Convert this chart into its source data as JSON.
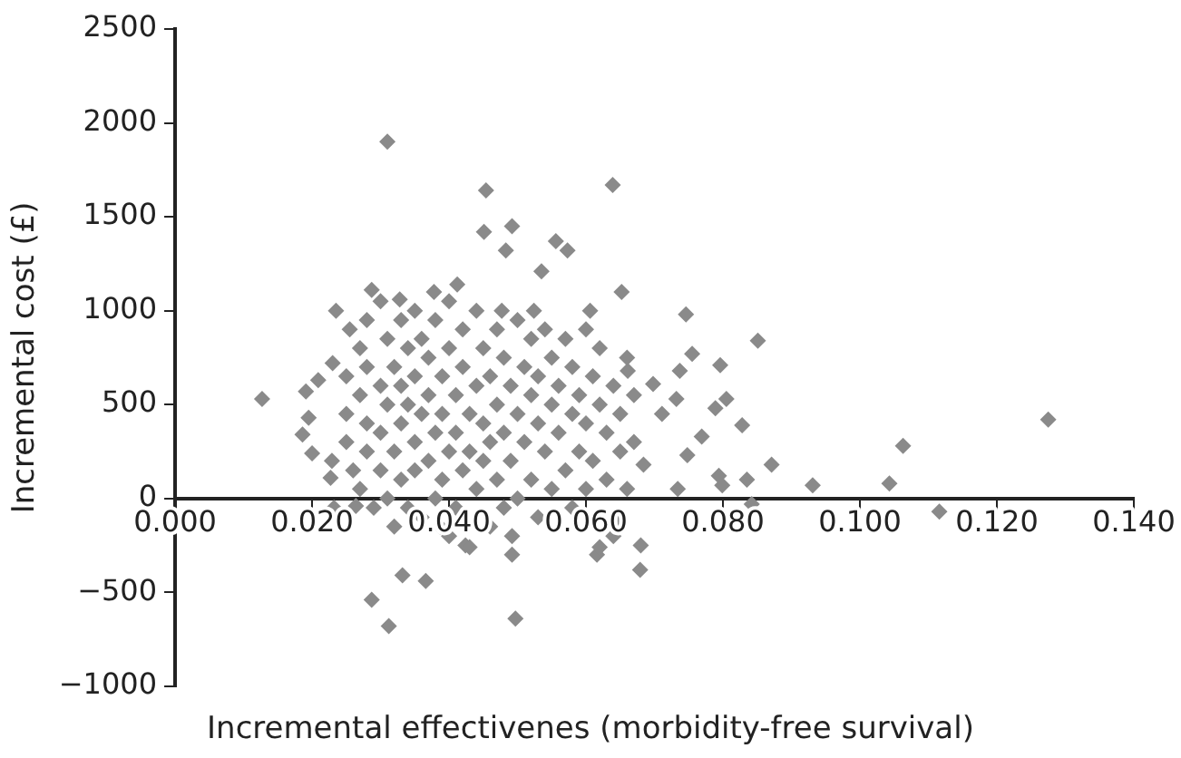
{
  "chart_data": {
    "type": "scatter",
    "xlabel": "Incremental effectivenes (morbidity-free survival)",
    "ylabel": "Incremental cost (£)",
    "xlim": [
      0,
      0.14
    ],
    "xticks": [
      {
        "value": 0,
        "label": "0.000"
      },
      {
        "value": 0.02,
        "label": "0.020"
      },
      {
        "value": 0.04,
        "label": "0.040"
      },
      {
        "value": 0.06,
        "label": "0.060"
      },
      {
        "value": 0.08,
        "label": "0.080"
      },
      {
        "value": 0.1,
        "label": "0.100"
      },
      {
        "value": 0.12,
        "label": "0.120"
      },
      {
        "value": 0.14,
        "label": "0.140"
      }
    ],
    "ylim": [
      -1000,
      2500
    ],
    "yticks": [
      {
        "value": -1000,
        "label": "−1000"
      },
      {
        "value": -500,
        "label": "−500"
      },
      0,
      500,
      1000,
      1500,
      2000,
      2500
    ],
    "grid": false,
    "legend": false,
    "marker": "diamond",
    "series": [
      {
        "color": "#8a8a8a",
        "x": [
          0.031,
          0.0454,
          0.0639,
          0.0451,
          0.0492,
          0.0483,
          0.0556,
          0.0573,
          0.0535,
          0.0652,
          0.0287,
          0.0235,
          0.0255,
          0.0127,
          0.0191,
          0.0209,
          0.023,
          0.0195,
          0.0186,
          0.02,
          0.0229,
          0.0227,
          0.0412,
          0.0328,
          0.0378,
          0.0477,
          0.0524,
          0.0606,
          0.0698,
          0.0232,
          0.0264,
          0.0332,
          0.0366,
          0.0287,
          0.0312,
          0.0497,
          0.0492,
          0.0492,
          0.0679,
          0.0647,
          0.0616,
          0.0424,
          0.0387,
          0.0746,
          0.0851,
          0.0755,
          0.0796,
          0.0737,
          0.0805,
          0.0732,
          0.0789,
          0.0828,
          0.0769,
          0.1275,
          0.1063,
          0.0871,
          0.1043,
          0.0931,
          0.0835,
          0.0794,
          0.0799,
          0.0842,
          0.1116,
          0.0748,
          0.0711,
          0.0684,
          0.0734,
          0.0661,
          0.025,
          0.025,
          0.025,
          0.026,
          0.027,
          0.027,
          0.027,
          0.028,
          0.028,
          0.028,
          0.028,
          0.029,
          0.03,
          0.03,
          0.03,
          0.03,
          0.031,
          0.031,
          0.031,
          0.032,
          0.032,
          0.032,
          0.033,
          0.033,
          0.033,
          0.033,
          0.034,
          0.034,
          0.034,
          0.035,
          0.035,
          0.035,
          0.035,
          0.036,
          0.036,
          0.036,
          0.037,
          0.037,
          0.037,
          0.038,
          0.038,
          0.038,
          0.039,
          0.039,
          0.039,
          0.04,
          0.04,
          0.04,
          0.04,
          0.041,
          0.041,
          0.041,
          0.042,
          0.042,
          0.042,
          0.043,
          0.043,
          0.043,
          0.044,
          0.044,
          0.044,
          0.045,
          0.045,
          0.045,
          0.046,
          0.046,
          0.046,
          0.047,
          0.047,
          0.047,
          0.048,
          0.048,
          0.048,
          0.049,
          0.049,
          0.05,
          0.05,
          0.05,
          0.051,
          0.051,
          0.052,
          0.052,
          0.052,
          0.053,
          0.053,
          0.053,
          0.054,
          0.054,
          0.055,
          0.055,
          0.055,
          0.056,
          0.056,
          0.057,
          0.057,
          0.058,
          0.058,
          0.058,
          0.059,
          0.059,
          0.06,
          0.06,
          0.06,
          0.061,
          0.061,
          0.062,
          0.062,
          0.062,
          0.063,
          0.063,
          0.064,
          0.064,
          0.065,
          0.065,
          0.066,
          0.066,
          0.067,
          0.067,
          0.068
        ],
        "values": [
          1900,
          1640,
          1670,
          1420,
          1450,
          1320,
          1370,
          1320,
          1210,
          1100,
          1110,
          1000,
          900,
          530,
          570,
          630,
          720,
          430,
          340,
          240,
          200,
          110,
          1140,
          1060,
          1100,
          1000,
          1000,
          1000,
          610,
          -50,
          -40,
          -410,
          -440,
          -540,
          -680,
          -640,
          -300,
          -200,
          -380,
          -120,
          -300,
          -250,
          -150,
          980,
          840,
          770,
          710,
          680,
          530,
          530,
          480,
          390,
          330,
          420,
          280,
          180,
          80,
          70,
          100,
          120,
          70,
          -30,
          -70,
          230,
          450,
          180,
          50,
          680,
          650,
          450,
          300,
          150,
          800,
          550,
          50,
          950,
          700,
          400,
          250,
          -50,
          1050,
          600,
          350,
          150,
          850,
          500,
          0,
          700,
          250,
          -150,
          950,
          600,
          400,
          100,
          800,
          500,
          -50,
          1000,
          650,
          300,
          150,
          850,
          450,
          -100,
          750,
          550,
          200,
          950,
          350,
          0,
          650,
          450,
          100,
          1050,
          800,
          250,
          -200,
          550,
          350,
          -50,
          900,
          700,
          150,
          450,
          250,
          -260,
          1000,
          600,
          50,
          800,
          400,
          200,
          650,
          300,
          -150,
          900,
          500,
          100,
          750,
          350,
          -50,
          600,
          200,
          950,
          450,
          0,
          700,
          300,
          850,
          550,
          100,
          650,
          400,
          -100,
          900,
          250,
          750,
          500,
          50,
          600,
          350,
          850,
          150,
          700,
          450,
          -50,
          550,
          250,
          900,
          400,
          50,
          650,
          200,
          800,
          500,
          -260,
          350,
          100,
          600,
          -200,
          450,
          250,
          750,
          50,
          550,
          300,
          -250
        ]
      }
    ]
  }
}
